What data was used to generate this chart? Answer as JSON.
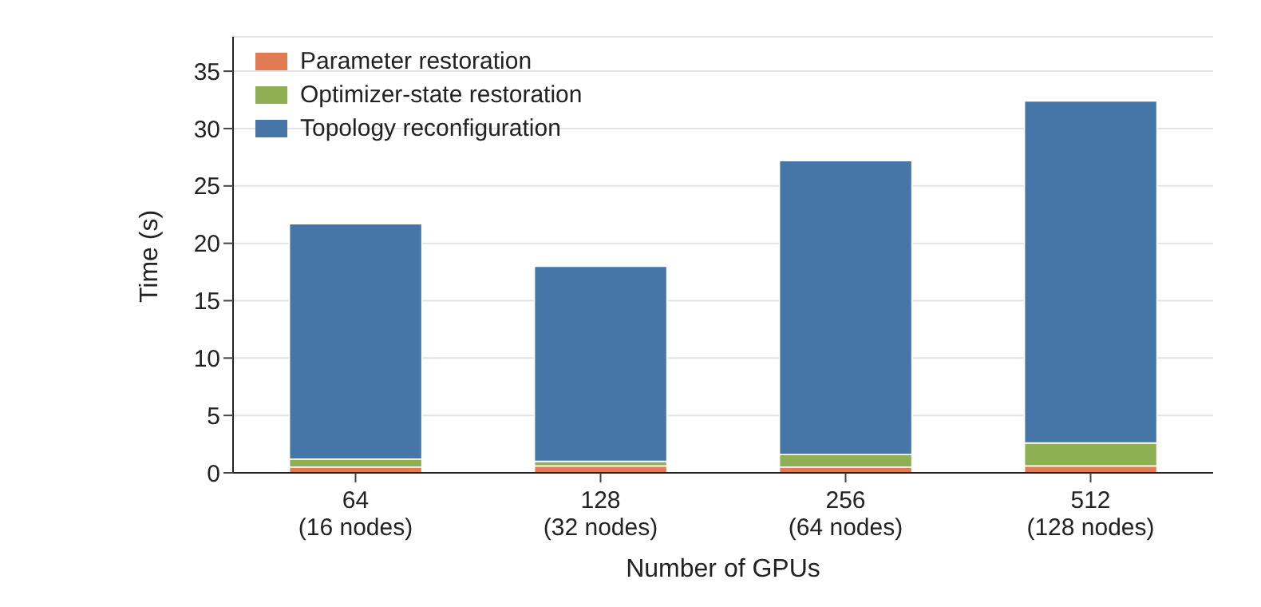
{
  "chart_data": {
    "type": "bar",
    "stacked": true,
    "xlabel": "Number of GPUs",
    "ylabel": "Time (s)",
    "categories": [
      "64\n(16 nodes)",
      "128\n(32 nodes)",
      "256\n(64 nodes)",
      "512\n(128 nodes)"
    ],
    "series": [
      {
        "name": "Parameter restoration",
        "color": "#e07b54",
        "values": [
          0.5,
          0.6,
          0.5,
          0.6
        ]
      },
      {
        "name": "Optimizer-state restoration",
        "color": "#8fb052",
        "values": [
          0.7,
          0.4,
          1.1,
          2.0
        ]
      },
      {
        "name": "Topology reconfiguration",
        "color": "#4676a8",
        "values": [
          20.5,
          17.0,
          25.6,
          29.8
        ]
      }
    ],
    "ylim": [
      0,
      38
    ],
    "yticks": [
      0,
      5,
      10,
      15,
      20,
      25,
      30,
      35
    ],
    "grid": "y",
    "legend": "top left"
  }
}
